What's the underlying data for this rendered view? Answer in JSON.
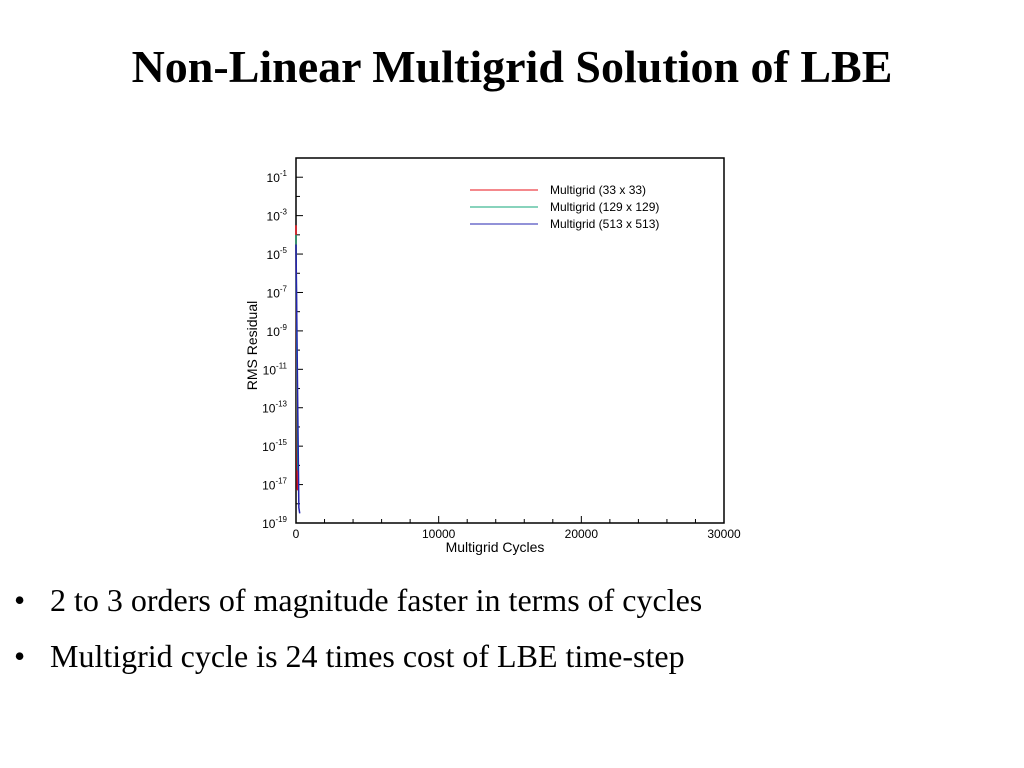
{
  "slide": {
    "title": "Non-Linear Multigrid Solution of LBE",
    "bullet_glyph": "•",
    "bullets": [
      "2 to 3 orders of magnitude faster in terms of cycles",
      "Multigrid cycle is 24 times cost of LBE time-step"
    ]
  },
  "chart_data": {
    "type": "line",
    "title": "",
    "xlabel": "Multigrid Cycles",
    "ylabel": "RMS Residual",
    "xlim": [
      0,
      30000
    ],
    "ylim_exponent": [
      -19,
      0
    ],
    "yscale": "log",
    "x_ticks": [
      {
        "value": 0,
        "label": "0"
      },
      {
        "value": 10000,
        "label": "10000"
      },
      {
        "value": 20000,
        "label": "20000"
      },
      {
        "value": 30000,
        "label": "30000"
      }
    ],
    "x_minor_step": 2000,
    "y_ticks": [
      {
        "exp": -1,
        "base": "10",
        "sup": "-1"
      },
      {
        "exp": -3,
        "base": "10",
        "sup": "-3"
      },
      {
        "exp": -5,
        "base": "10",
        "sup": "-5"
      },
      {
        "exp": -7,
        "base": "10",
        "sup": "-7"
      },
      {
        "exp": -9,
        "base": "10",
        "sup": "-9"
      },
      {
        "exp": -11,
        "base": "10",
        "sup": "-11"
      },
      {
        "exp": -13,
        "base": "10",
        "sup": "-13"
      },
      {
        "exp": -15,
        "base": "10",
        "sup": "-15"
      },
      {
        "exp": -17,
        "base": "10",
        "sup": "-17"
      },
      {
        "exp": -19,
        "base": "10",
        "sup": "-19"
      }
    ],
    "legend_position": "top-right",
    "grid": false,
    "series": [
      {
        "name": "Multigrid (33 x 33)",
        "color": "#e8101a",
        "points": [
          [
            0,
            -3.5
          ],
          [
            15,
            -6
          ],
          [
            30,
            -8.5
          ],
          [
            45,
            -11
          ],
          [
            60,
            -13.5
          ],
          [
            75,
            -16
          ],
          [
            90,
            -17.2
          ],
          [
            120,
            -17.3
          ]
        ]
      },
      {
        "name": "Multigrid (129 x 129)",
        "color": "#11a77a",
        "points": [
          [
            0,
            -4
          ],
          [
            25,
            -6.8
          ],
          [
            50,
            -9.5
          ],
          [
            75,
            -12.2
          ],
          [
            100,
            -14.8
          ],
          [
            125,
            -16.2
          ],
          [
            160,
            -16.3
          ]
        ]
      },
      {
        "name": "Multigrid (513 x 513)",
        "color": "#2424b0",
        "points": [
          [
            0,
            -4.5
          ],
          [
            40,
            -7.2
          ],
          [
            80,
            -10
          ],
          [
            120,
            -12.8
          ],
          [
            160,
            -15.5
          ],
          [
            200,
            -18.2
          ],
          [
            260,
            -18.5
          ]
        ]
      }
    ]
  }
}
